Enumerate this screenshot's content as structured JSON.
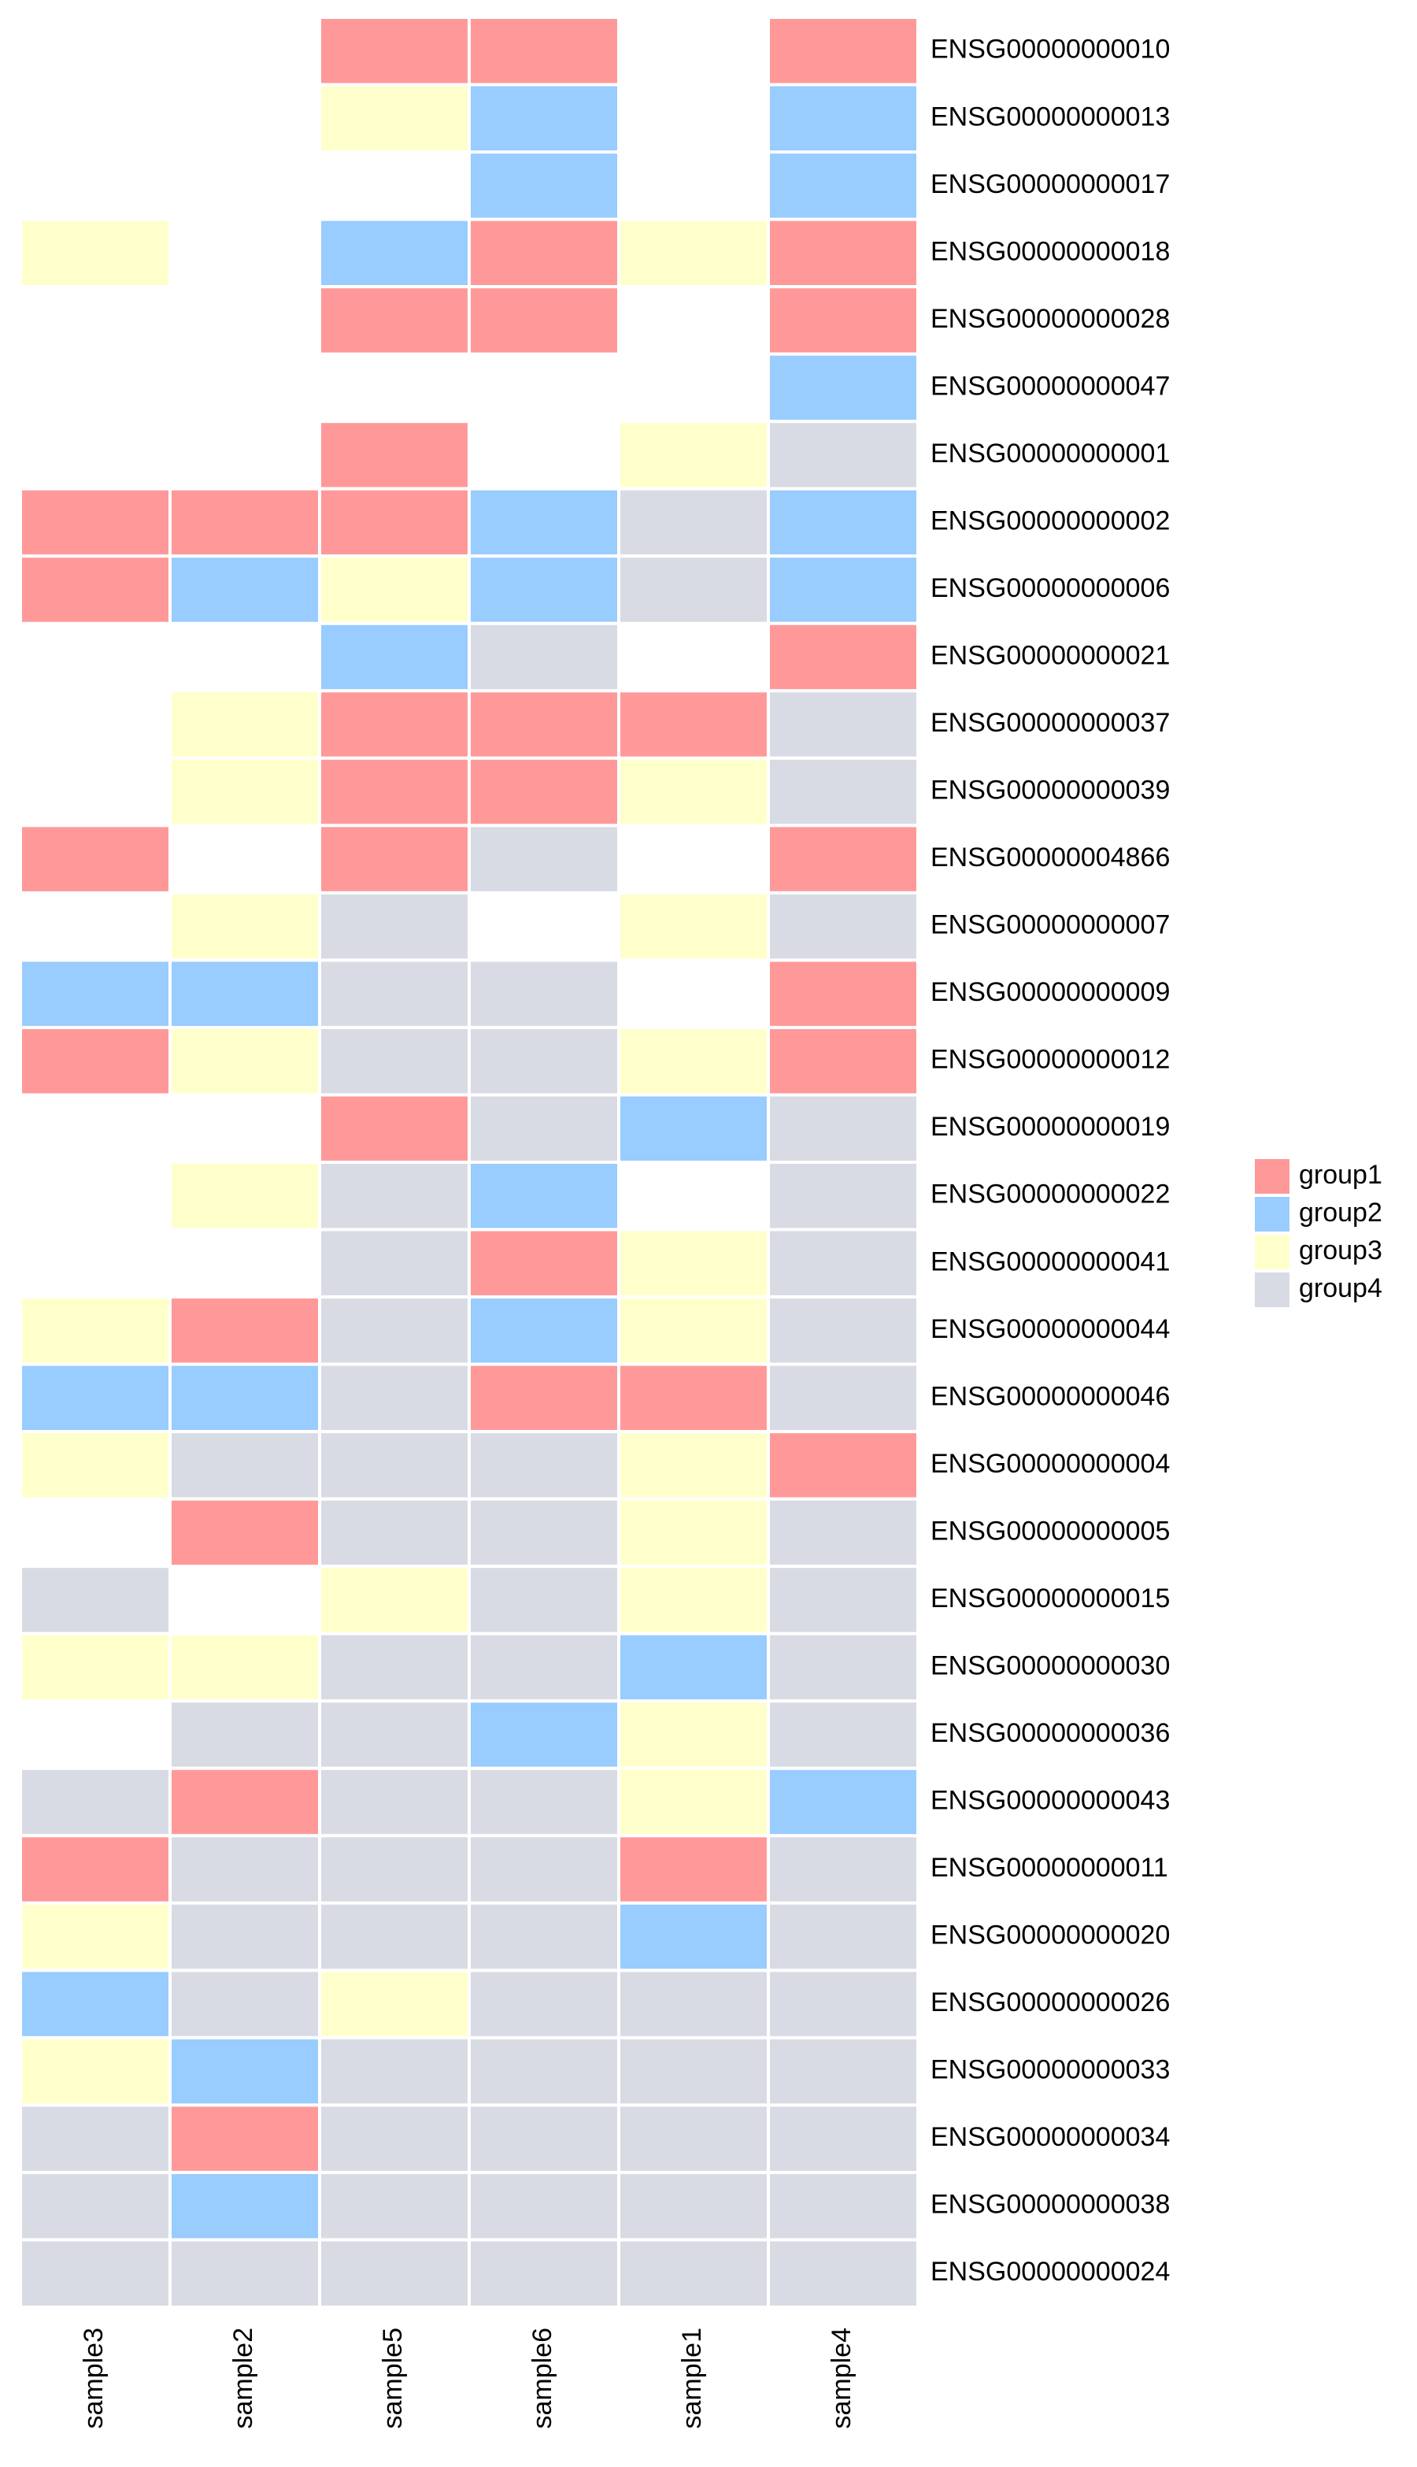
{
  "chart_data": {
    "type": "heatmap",
    "columns": [
      "sample3",
      "sample2",
      "sample5",
      "sample6",
      "sample1",
      "sample4"
    ],
    "rows": [
      "ENSG00000000010",
      "ENSG00000000013",
      "ENSG00000000017",
      "ENSG00000000018",
      "ENSG00000000028",
      "ENSG00000000047",
      "ENSG00000000001",
      "ENSG00000000002",
      "ENSG00000000006",
      "ENSG00000000021",
      "ENSG00000000037",
      "ENSG00000000039",
      "ENSG00000004866",
      "ENSG00000000007",
      "ENSG00000000009",
      "ENSG00000000012",
      "ENSG00000000019",
      "ENSG00000000022",
      "ENSG00000000041",
      "ENSG00000000044",
      "ENSG00000000046",
      "ENSG00000000004",
      "ENSG00000000005",
      "ENSG00000000015",
      "ENSG00000000030",
      "ENSG00000000036",
      "ENSG00000000043",
      "ENSG00000000011",
      "ENSG00000000020",
      "ENSG00000000026",
      "ENSG00000000033",
      "ENSG00000000034",
      "ENSG00000000038",
      "ENSG00000000024"
    ],
    "groups": [
      {
        "name": "group1",
        "color": "#ff9999"
      },
      {
        "name": "group2",
        "color": "#99ccff"
      },
      {
        "name": "group3",
        "color": "#ffffcc"
      },
      {
        "name": "group4",
        "color": "#d9dbe4"
      }
    ],
    "values": [
      [
        null,
        null,
        "group1",
        "group1",
        null,
        "group1"
      ],
      [
        null,
        null,
        "group3",
        "group2",
        null,
        "group2"
      ],
      [
        null,
        null,
        null,
        "group2",
        null,
        "group2"
      ],
      [
        "group3",
        null,
        "group2",
        "group1",
        "group3",
        "group1"
      ],
      [
        null,
        null,
        "group1",
        "group1",
        null,
        "group1"
      ],
      [
        null,
        null,
        null,
        null,
        null,
        "group2"
      ],
      [
        null,
        null,
        "group1",
        null,
        "group3",
        "group4"
      ],
      [
        "group1",
        "group1",
        "group1",
        "group2",
        "group4",
        "group2"
      ],
      [
        "group1",
        "group2",
        "group3",
        "group2",
        "group4",
        "group2"
      ],
      [
        null,
        null,
        "group2",
        "group4",
        null,
        "group1"
      ],
      [
        null,
        "group3",
        "group1",
        "group1",
        "group1",
        "group4"
      ],
      [
        null,
        "group3",
        "group1",
        "group1",
        "group3",
        "group4"
      ],
      [
        "group1",
        null,
        "group1",
        "group4",
        null,
        "group1"
      ],
      [
        null,
        "group3",
        "group4",
        null,
        "group3",
        "group4"
      ],
      [
        "group2",
        "group2",
        "group4",
        "group4",
        null,
        "group1"
      ],
      [
        "group1",
        "group3",
        "group4",
        "group4",
        "group3",
        "group1"
      ],
      [
        null,
        null,
        "group1",
        "group4",
        "group2",
        "group4"
      ],
      [
        null,
        "group3",
        "group4",
        "group2",
        null,
        "group4"
      ],
      [
        null,
        null,
        "group4",
        "group1",
        "group3",
        "group4"
      ],
      [
        "group3",
        "group1",
        "group4",
        "group2",
        "group3",
        "group4"
      ],
      [
        "group2",
        "group2",
        "group4",
        "group1",
        "group1",
        "group4"
      ],
      [
        "group3",
        "group4",
        "group4",
        "group4",
        "group3",
        "group1"
      ],
      [
        null,
        "group1",
        "group4",
        "group4",
        "group3",
        "group4"
      ],
      [
        "group4",
        null,
        "group3",
        "group4",
        "group3",
        "group4"
      ],
      [
        "group3",
        "group3",
        "group4",
        "group4",
        "group2",
        "group4"
      ],
      [
        null,
        "group4",
        "group4",
        "group2",
        "group3",
        "group4"
      ],
      [
        "group4",
        "group1",
        "group4",
        "group4",
        "group3",
        "group2"
      ],
      [
        "group1",
        "group4",
        "group4",
        "group4",
        "group1",
        "group4"
      ],
      [
        "group3",
        "group4",
        "group4",
        "group4",
        "group2",
        "group4"
      ],
      [
        "group2",
        "group4",
        "group3",
        "group4",
        "group4",
        "group4"
      ],
      [
        "group3",
        "group2",
        "group4",
        "group4",
        "group4",
        "group4"
      ],
      [
        "group4",
        "group1",
        "group4",
        "group4",
        "group4",
        "group4"
      ],
      [
        "group4",
        "group2",
        "group4",
        "group4",
        "group4",
        "group4"
      ],
      [
        "group4",
        "group4",
        "group4",
        "group4",
        "group4",
        "group4"
      ]
    ]
  }
}
